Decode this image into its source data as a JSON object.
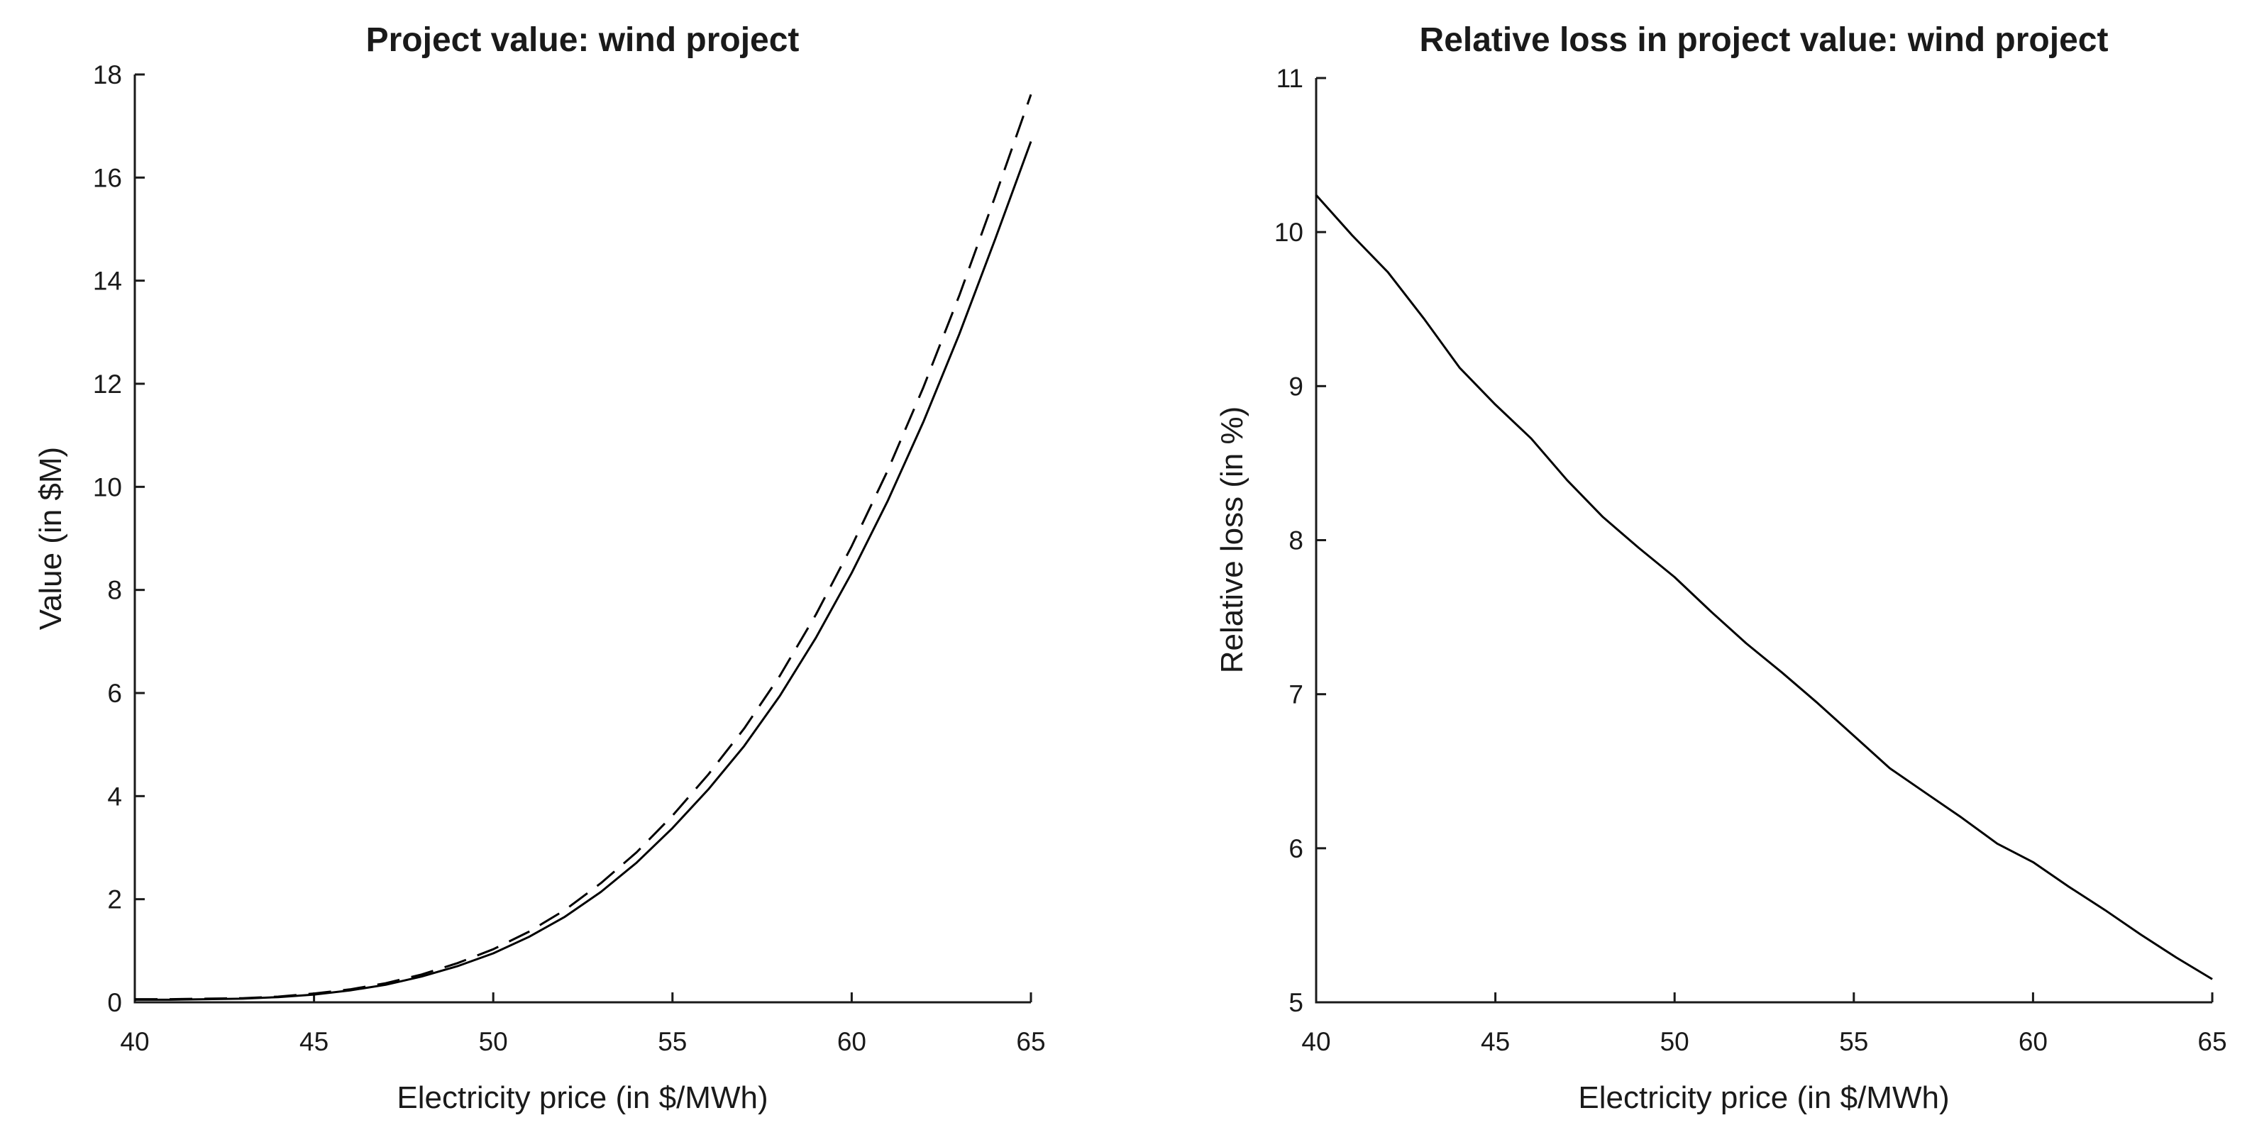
{
  "figure": {
    "background": "#ffffff",
    "axis_color": "#1a1a1a",
    "curve_color": "#000000",
    "tick_direction": "in",
    "spines": "left-bottom-only",
    "grid": false,
    "legend": false
  },
  "chart_data": [
    {
      "type": "line",
      "title": "Project value: wind project",
      "xlabel": "Electricity price (in $/MWh)",
      "ylabel": "Value (in $M)",
      "xlim": [
        40,
        65
      ],
      "ylim": [
        0,
        18
      ],
      "x_ticks": [
        40,
        45,
        50,
        55,
        60,
        65
      ],
      "y_ticks": [
        0,
        2,
        4,
        6,
        8,
        10,
        12,
        14,
        16,
        18
      ],
      "x": [
        40,
        41,
        42,
        43,
        44,
        45,
        46,
        47,
        48,
        49,
        50,
        51,
        52,
        53,
        54,
        55,
        56,
        57,
        58,
        59,
        60,
        61,
        62,
        63,
        64,
        65
      ],
      "series": [
        {
          "name": "dashed",
          "style": "dashed",
          "values": [
            0.06,
            0.06,
            0.07,
            0.08,
            0.11,
            0.17,
            0.25,
            0.37,
            0.54,
            0.76,
            1.03,
            1.37,
            1.79,
            2.31,
            2.91,
            3.62,
            4.42,
            5.31,
            6.34,
            7.52,
            8.85,
            10.31,
            11.93,
            13.71,
            15.63,
            17.61
          ]
        },
        {
          "name": "solid",
          "style": "solid",
          "values": [
            0.05,
            0.05,
            0.06,
            0.07,
            0.1,
            0.15,
            0.23,
            0.34,
            0.5,
            0.7,
            0.95,
            1.27,
            1.66,
            2.14,
            2.71,
            3.38,
            4.13,
            4.97,
            5.95,
            7.07,
            8.33,
            9.72,
            11.26,
            12.96,
            14.8,
            16.7
          ]
        }
      ]
    },
    {
      "type": "line",
      "title": "Relative loss in project value: wind project",
      "xlabel": "Electricity price (in $/MWh)",
      "ylabel": "Relative loss (in %)",
      "xlim": [
        40,
        65
      ],
      "ylim": [
        5,
        11
      ],
      "x_ticks": [
        40,
        45,
        50,
        55,
        60,
        65
      ],
      "y_ticks": [
        5,
        6,
        7,
        8,
        9,
        10,
        11
      ],
      "x": [
        40,
        41,
        42,
        43,
        44,
        45,
        46,
        47,
        48,
        49,
        50,
        51,
        52,
        53,
        54,
        55,
        56,
        57,
        58,
        59,
        60,
        61,
        62,
        63,
        64,
        65
      ],
      "series": [
        {
          "name": "solid",
          "style": "solid",
          "values": [
            10.24,
            9.98,
            9.74,
            9.44,
            9.12,
            8.88,
            8.66,
            8.39,
            8.15,
            7.95,
            7.76,
            7.54,
            7.33,
            7.14,
            6.94,
            6.73,
            6.52,
            6.36,
            6.2,
            6.03,
            5.91,
            5.75,
            5.6,
            5.44,
            5.29,
            5.15
          ]
        }
      ]
    }
  ]
}
